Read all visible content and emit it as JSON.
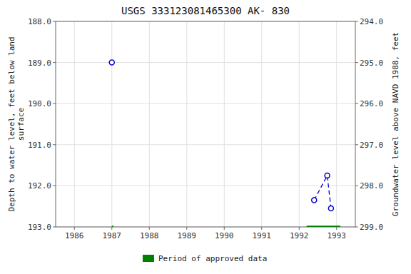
{
  "chart_data": {
    "type": "line",
    "title": "USGS 333123081465300 AK- 830",
    "y_label": "Depth to water level, feet below land\nsurface",
    "y2_label": "Groundwater level above NAVD 1988, feet",
    "xlim": [
      1985.5,
      1993.5
    ],
    "xticks": [
      1986,
      1987,
      1988,
      1989,
      1990,
      1991,
      1992,
      1993
    ],
    "ylim": [
      193.0,
      188.0
    ],
    "yticks": [
      {
        "value": 188.0,
        "label": "188.0"
      },
      {
        "value": 189.0,
        "label": "189.0"
      },
      {
        "value": 190.0,
        "label": "190.0"
      },
      {
        "value": 191.0,
        "label": "191.0"
      },
      {
        "value": 192.0,
        "label": "192.0"
      },
      {
        "value": 193.0,
        "label": "193.0"
      }
    ],
    "y2lim": [
      299.0,
      294.0
    ],
    "y2ticks": [
      {
        "value": 299.0,
        "label": "299.0"
      },
      {
        "value": 298.0,
        "label": "298.0"
      },
      {
        "value": 297.0,
        "label": "297.0"
      },
      {
        "value": 296.0,
        "label": "296.0"
      },
      {
        "value": 295.0,
        "label": "295.0"
      },
      {
        "value": 294.0,
        "label": "294.0"
      }
    ],
    "grid": true,
    "legend": "bottom",
    "series": [
      {
        "type": "scatter",
        "color": "#0000cc",
        "marker": "circle",
        "x": [
          1987.0
        ],
        "values": [
          189.0
        ]
      },
      {
        "type": "line",
        "color": "#0000cc",
        "marker": "circle",
        "line_style": "dashed",
        "x": [
          1992.4,
          1992.75,
          1992.85
        ],
        "values": [
          192.35,
          191.75,
          192.55
        ]
      },
      {
        "type": "band",
        "name": "Period of approved data",
        "color": "#008000",
        "x": [
          1987.0,
          1992.2
        ],
        "widths": [
          0.04,
          0.9
        ],
        "values": [
          192.97,
          192.97
        ],
        "heights": [
          0.06,
          0.06
        ]
      }
    ]
  }
}
